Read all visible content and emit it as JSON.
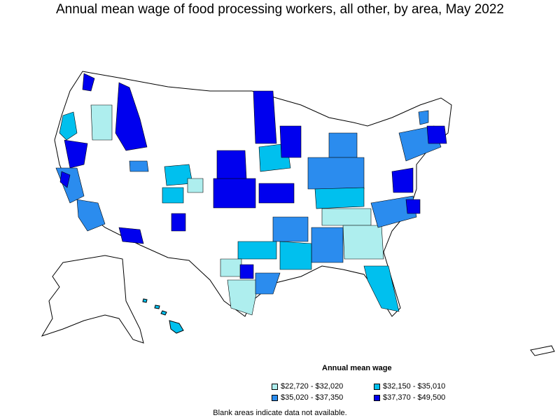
{
  "title": "Annual mean wage of food processing workers, all other, by area, May 2022",
  "legend": {
    "title": "Annual mean wage",
    "items": [
      {
        "label": "$22,720 - $32,020",
        "color": "#aeeeee"
      },
      {
        "label": "$32,150 - $35,010",
        "color": "#00c0ee"
      },
      {
        "label": "$35,020 - $37,350",
        "color": "#2b8cee"
      },
      {
        "label": "$37,370 - $49,500",
        "color": "#0000ee"
      }
    ]
  },
  "note": "Blank areas indicate data not available.",
  "colors": {
    "blank": "#ffffff",
    "border": "#000000"
  }
}
